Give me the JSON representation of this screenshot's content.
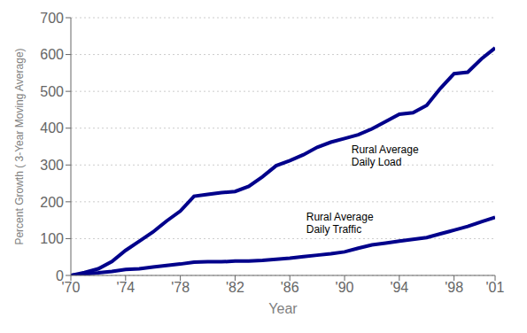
{
  "chart_data": {
    "type": "line",
    "xlabel": "Year",
    "ylabel": "Percent Growth ( 3-Year Moving Average)",
    "x": [
      1970,
      1971,
      1972,
      1973,
      1974,
      1975,
      1976,
      1977,
      1978,
      1979,
      1980,
      1981,
      1982,
      1983,
      1984,
      1985,
      1986,
      1987,
      1988,
      1989,
      1990,
      1991,
      1992,
      1993,
      1994,
      1995,
      1996,
      1997,
      1998,
      1999,
      2000,
      2001
    ],
    "series": [
      {
        "color": "#00008B",
        "values": [
          0,
          8,
          18,
          38,
          68,
          93,
          118,
          148,
          175,
          215,
          220,
          225,
          228,
          242,
          268,
          298,
          312,
          328,
          348,
          362,
          372,
          382,
          398,
          418,
          438,
          442,
          462,
          508,
          548,
          552,
          588,
          618
        ]
      },
      {
        "color": "#00008B",
        "values": [
          0,
          4,
          7,
          11,
          16,
          18,
          23,
          27,
          31,
          36,
          37,
          37,
          39,
          39,
          41,
          44,
          47,
          51,
          55,
          59,
          64,
          74,
          83,
          88,
          93,
          98,
          103,
          113,
          123,
          133,
          146,
          158
        ]
      }
    ],
    "xlim": [
      1970,
      2001
    ],
    "xticks": [
      {
        "value": 1970,
        "label": "'70"
      },
      {
        "value": 1974,
        "label": "'74"
      },
      {
        "value": 1978,
        "label": "'78"
      },
      {
        "value": 1982,
        "label": "'82"
      },
      {
        "value": 1986,
        "label": "'86"
      },
      {
        "value": 1990,
        "label": "'90"
      },
      {
        "value": 1994,
        "label": "'94"
      },
      {
        "value": 1998,
        "label": "'98"
      },
      {
        "value": 2001,
        "label": "'01"
      }
    ],
    "ylim": [
      0,
      700
    ],
    "yticks": [
      0,
      100,
      200,
      300,
      400,
      500,
      600,
      700
    ],
    "grid": "y",
    "annotations": [
      {
        "text": "Rural Average\nDaily Load",
        "x": 1990.5,
        "y": 358
      },
      {
        "text": "Rural Average\nDaily Traffic",
        "x": 1987.2,
        "y": 174
      }
    ]
  }
}
